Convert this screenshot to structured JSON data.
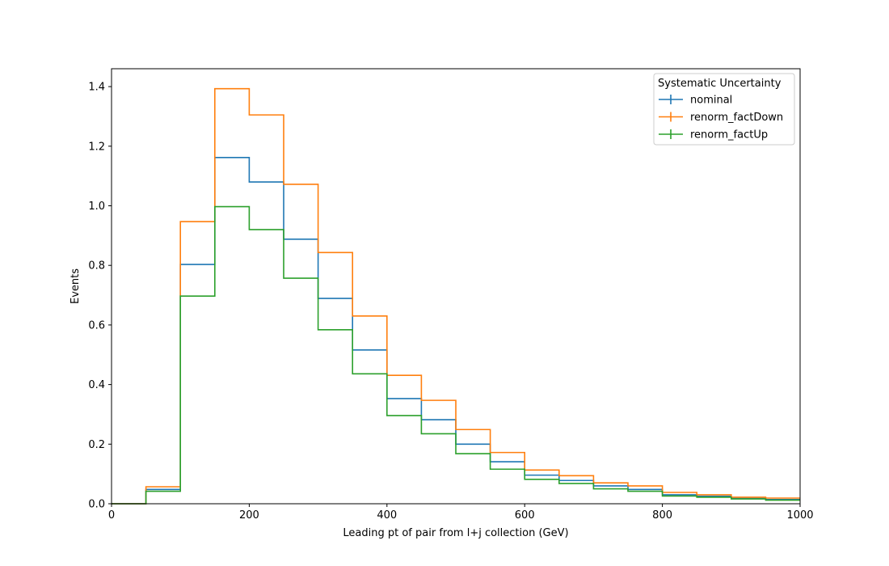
{
  "chart_data": {
    "type": "line",
    "style": "step-histogram",
    "bin_edges": [
      0,
      50,
      100,
      150,
      200,
      250,
      300,
      350,
      400,
      450,
      500,
      550,
      600,
      650,
      700,
      750,
      800,
      850,
      900,
      950,
      1000
    ],
    "series": [
      {
        "name": "nominal",
        "color": "#1f77b4",
        "values": [
          0.0,
          0.048,
          0.803,
          1.162,
          1.08,
          0.888,
          0.689,
          0.516,
          0.353,
          0.282,
          0.2,
          0.141,
          0.096,
          0.078,
          0.06,
          0.048,
          0.03,
          0.025,
          0.018,
          0.014
        ]
      },
      {
        "name": "renorm_factDown",
        "color": "#ff7f0e",
        "values": [
          0.0,
          0.057,
          0.947,
          1.393,
          1.305,
          1.072,
          0.843,
          0.63,
          0.431,
          0.347,
          0.249,
          0.172,
          0.113,
          0.094,
          0.07,
          0.06,
          0.038,
          0.03,
          0.022,
          0.019
        ]
      },
      {
        "name": "renorm_factUp",
        "color": "#2ca02c",
        "values": [
          0.0,
          0.042,
          0.697,
          0.997,
          0.92,
          0.757,
          0.584,
          0.436,
          0.296,
          0.235,
          0.168,
          0.116,
          0.082,
          0.068,
          0.05,
          0.042,
          0.026,
          0.022,
          0.016,
          0.012
        ]
      }
    ],
    "xlabel": "Leading pt of pair from l+j collection (GeV)",
    "ylabel": "Events",
    "xlim": [
      0,
      1000
    ],
    "ylim": [
      0,
      1.46
    ],
    "x_ticks": [
      "0",
      "200",
      "400",
      "600",
      "800",
      "1000"
    ],
    "y_ticks": [
      "0.0",
      "0.2",
      "0.4",
      "0.6",
      "0.8",
      "1.0",
      "1.2",
      "1.4"
    ],
    "grid": false,
    "legend": {
      "title": "Systematic Uncertainty",
      "position": "top-right"
    }
  }
}
